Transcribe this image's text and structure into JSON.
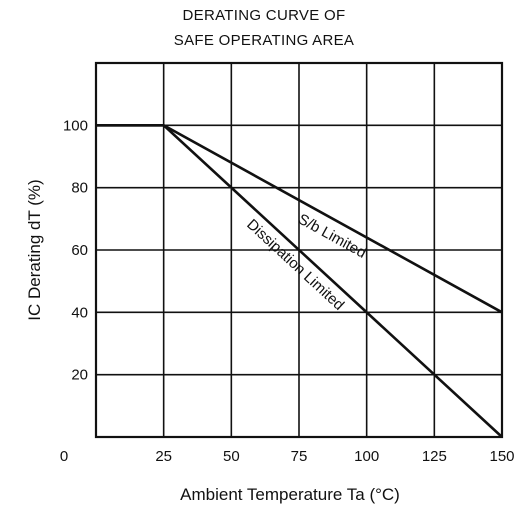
{
  "chart_data": {
    "type": "line",
    "title_lines": [
      "DERATING CURVE OF",
      "SAFE OPERATING AREA"
    ],
    "xlabel": "Ambient Temperature  Ta  (°C)",
    "ylabel": "IC Derating  dT  (%)",
    "xlim": [
      0,
      150
    ],
    "ylim": [
      0,
      120
    ],
    "x_ticks": [
      0,
      25,
      50,
      75,
      100,
      125,
      150
    ],
    "y_ticks": [
      20,
      40,
      60,
      80,
      100
    ],
    "grid": true,
    "series": [
      {
        "name": "S/b Limited",
        "x": [
          0,
          25,
          150
        ],
        "y": [
          100,
          100,
          40
        ]
      },
      {
        "name": "Dissipation Limited",
        "x": [
          0,
          25,
          150
        ],
        "y": [
          100,
          100,
          0
        ]
      }
    ],
    "colors": {
      "line": "#111111",
      "grid": "#111111",
      "background": "#ffffff"
    }
  }
}
